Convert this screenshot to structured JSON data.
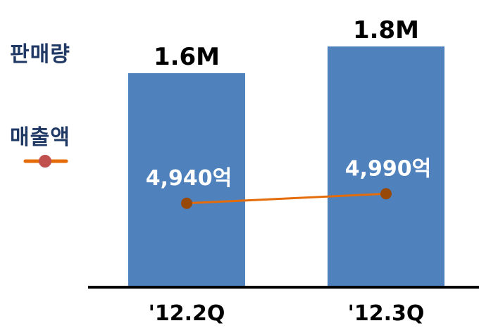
{
  "legend": {
    "bar_label": "판매량",
    "line_label": "매출액"
  },
  "chart_data": {
    "type": "bar",
    "categories": [
      "'12.2Q",
      "'12.3Q"
    ],
    "series": [
      {
        "name": "판매량",
        "type": "bar",
        "values": [
          1.6,
          1.8
        ],
        "value_labels": [
          "1.6M",
          "1.8M"
        ],
        "unit": "M",
        "color": "#4f81bd"
      },
      {
        "name": "매출액",
        "type": "line",
        "values": [
          4940,
          4990
        ],
        "value_labels": [
          "4,940억",
          "4,990억"
        ],
        "unit": "억",
        "color": "#e46c0a",
        "marker_color": "#984807"
      }
    ],
    "bar_ylim": [
      0,
      2.0
    ],
    "line_ylim": [
      4500,
      5600
    ],
    "legend_position": "left",
    "grid": false
  }
}
